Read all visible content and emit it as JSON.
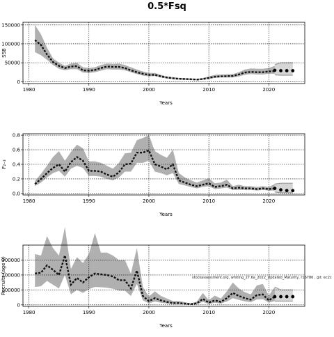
{
  "figure": {
    "title": "0.5*Fsq",
    "watermark": "stockassessment.org, whiting_27.6a_2022_Updated_Maturity, r16786 , git: ec2c"
  },
  "chart_data": [
    {
      "type": "area",
      "panel": "ssb",
      "xlabel": "Years",
      "ylabel": "SSB",
      "xlim": [
        1979,
        2026
      ],
      "ylim": [
        -5000,
        157000
      ],
      "xticks": [
        1980,
        1990,
        2000,
        2010,
        2020
      ],
      "yticks": [
        0,
        50000,
        100000,
        150000
      ],
      "ytick_labels": [
        "0",
        "50000",
        "100000",
        "150000"
      ],
      "grid": true,
      "band_color": "#b0b0b0",
      "line_color": "#111111",
      "x": [
        1981,
        1982,
        1983,
        1984,
        1985,
        1986,
        1987,
        1988,
        1989,
        1990,
        1991,
        1992,
        1993,
        1994,
        1995,
        1996,
        1997,
        1998,
        1999,
        2000,
        2001,
        2002,
        2003,
        2004,
        2005,
        2006,
        2007,
        2008,
        2009,
        2010,
        2011,
        2012,
        2013,
        2014,
        2015,
        2016,
        2017,
        2018,
        2019,
        2020,
        2021
      ],
      "estimate": [
        110000,
        97000,
        72000,
        52000,
        42000,
        36000,
        40000,
        41000,
        30000,
        29000,
        31000,
        36000,
        40000,
        39000,
        39000,
        36000,
        30000,
        25000,
        21000,
        18000,
        18000,
        14000,
        11000,
        9000,
        7500,
        7000,
        6500,
        5500,
        7000,
        10000,
        13000,
        14000,
        14500,
        15000,
        19000,
        24000,
        26000,
        25000,
        25000,
        27000,
        28000
      ],
      "lower": [
        78000,
        70000,
        58000,
        44000,
        34000,
        30000,
        33000,
        33000,
        24000,
        23000,
        25000,
        29000,
        33000,
        32000,
        32000,
        30000,
        25000,
        20000,
        16000,
        14000,
        15000,
        11000,
        8500,
        7000,
        5500,
        5000,
        4500,
        4000,
        5000,
        7500,
        10000,
        11000,
        11000,
        11000,
        14000,
        18000,
        20000,
        19000,
        19000,
        21000,
        21000
      ],
      "upper": [
        150000,
        125000,
        90000,
        62000,
        50000,
        42000,
        48000,
        50000,
        38000,
        36000,
        38000,
        44000,
        48000,
        47000,
        48000,
        44000,
        38000,
        32000,
        27000,
        23000,
        23000,
        18000,
        14000,
        12000,
        10000,
        9500,
        8500,
        7500,
        9500,
        14000,
        18000,
        19000,
        19500,
        20000,
        25000,
        32000,
        35000,
        34000,
        34000,
        36000,
        42000
      ],
      "forecast_x": [
        2021,
        2022,
        2023,
        2024
      ],
      "forecast_points": [
        30000,
        29000,
        29000,
        29000
      ],
      "forecast_lower": [
        18000,
        17000,
        17000,
        17000
      ],
      "forecast_upper": [
        45000,
        50000,
        50000,
        50000
      ]
    },
    {
      "type": "area",
      "panel": "fbar",
      "xlabel": "Years",
      "ylabel": "F₂₋₃",
      "xlim": [
        1979,
        2026
      ],
      "ylim": [
        -0.02,
        0.82
      ],
      "xticks": [
        1980,
        1990,
        2000,
        2010,
        2020
      ],
      "yticks": [
        0,
        0.2,
        0.4,
        0.6,
        0.8
      ],
      "ytick_labels": [
        "0.0",
        "0.2",
        "0.4",
        "0.6",
        "0.8"
      ],
      "grid": true,
      "band_color": "#b0b0b0",
      "line_color": "#111111",
      "x": [
        1981,
        1982,
        1983,
        1984,
        1985,
        1986,
        1987,
        1988,
        1989,
        1990,
        1991,
        1992,
        1993,
        1994,
        1995,
        1996,
        1997,
        1998,
        1999,
        2000,
        2001,
        2002,
        2003,
        2004,
        2005,
        2006,
        2007,
        2008,
        2009,
        2010,
        2011,
        2012,
        2013,
        2014,
        2015,
        2016,
        2017,
        2018,
        2019,
        2020,
        2021
      ],
      "estimate": [
        0.13,
        0.2,
        0.28,
        0.35,
        0.4,
        0.3,
        0.43,
        0.5,
        0.45,
        0.31,
        0.31,
        0.3,
        0.26,
        0.23,
        0.29,
        0.4,
        0.41,
        0.56,
        0.56,
        0.59,
        0.4,
        0.37,
        0.33,
        0.4,
        0.18,
        0.15,
        0.12,
        0.1,
        0.12,
        0.14,
        0.09,
        0.1,
        0.12,
        0.07,
        0.08,
        0.07,
        0.07,
        0.06,
        0.07,
        0.06,
        0.07
      ],
      "lower": [
        0.1,
        0.15,
        0.22,
        0.28,
        0.31,
        0.23,
        0.34,
        0.38,
        0.35,
        0.24,
        0.24,
        0.23,
        0.2,
        0.18,
        0.22,
        0.3,
        0.3,
        0.42,
        0.42,
        0.45,
        0.3,
        0.28,
        0.25,
        0.28,
        0.13,
        0.11,
        0.09,
        0.07,
        0.09,
        0.1,
        0.06,
        0.07,
        0.08,
        0.05,
        0.05,
        0.05,
        0.05,
        0.04,
        0.05,
        0.04,
        0.04
      ],
      "upper": [
        0.17,
        0.27,
        0.38,
        0.5,
        0.58,
        0.45,
        0.57,
        0.67,
        0.62,
        0.44,
        0.44,
        0.42,
        0.38,
        0.34,
        0.42,
        0.55,
        0.56,
        0.73,
        0.76,
        0.8,
        0.58,
        0.53,
        0.49,
        0.6,
        0.28,
        0.22,
        0.18,
        0.15,
        0.18,
        0.21,
        0.14,
        0.15,
        0.19,
        0.1,
        0.12,
        0.1,
        0.1,
        0.09,
        0.1,
        0.09,
        0.13
      ],
      "forecast_x": [
        2021,
        2022,
        2023,
        2024
      ],
      "forecast_points": [
        0.07,
        0.05,
        0.04,
        0.04
      ],
      "forecast_lower": [
        0.02,
        0.01,
        0.01,
        0.01
      ],
      "forecast_upper": [
        0.13,
        0.14,
        0.14,
        0.14
      ]
    },
    {
      "type": "area",
      "panel": "recruitment",
      "xlabel": "Years",
      "ylabel": "Recruits (age 0)",
      "xlim": [
        1979,
        2026
      ],
      "ylim": [
        -10000000,
        400000000
      ],
      "xticks": [
        1980,
        1990,
        2000,
        2010,
        2020
      ],
      "yticks": [
        0,
        100000000,
        200000000,
        300000000
      ],
      "ytick_labels": [
        "0",
        "100000",
        "200000",
        "300000"
      ],
      "grid": true,
      "band_color": "#b0b0b0",
      "line_color": "#111111",
      "x": [
        1981,
        1982,
        1983,
        1984,
        1985,
        1986,
        1987,
        1988,
        1989,
        1990,
        1991,
        1992,
        1993,
        1994,
        1995,
        1996,
        1997,
        1998,
        1999,
        2000,
        2001,
        2002,
        2003,
        2004,
        2005,
        2006,
        2007,
        2008,
        2009,
        2010,
        2011,
        2012,
        2013,
        2014,
        2015,
        2016,
        2017,
        2018,
        2019,
        2020,
        2021
      ],
      "estimate": [
        210000000,
        215000000,
        265000000,
        235000000,
        200000000,
        330000000,
        135000000,
        180000000,
        150000000,
        185000000,
        210000000,
        205000000,
        200000000,
        190000000,
        165000000,
        165000000,
        110000000,
        230000000,
        60000000,
        25000000,
        45000000,
        30000000,
        20000000,
        12000000,
        12000000,
        8000000,
        5000000,
        10000000,
        40000000,
        15000000,
        30000000,
        20000000,
        45000000,
        80000000,
        60000000,
        45000000,
        35000000,
        65000000,
        70000000,
        30000000,
        55000000
      ],
      "lower": [
        120000000,
        125000000,
        160000000,
        135000000,
        110000000,
        200000000,
        70000000,
        100000000,
        80000000,
        105000000,
        120000000,
        118000000,
        115000000,
        108000000,
        95000000,
        95000000,
        60000000,
        140000000,
        30000000,
        10000000,
        22000000,
        14000000,
        9000000,
        5000000,
        5000000,
        3000000,
        2000000,
        4000000,
        20000000,
        6000000,
        14000000,
        9000000,
        22000000,
        45000000,
        33000000,
        24000000,
        18000000,
        36000000,
        38000000,
        15000000,
        25000000
      ],
      "upper": [
        340000000,
        330000000,
        460000000,
        380000000,
        330000000,
        520000000,
        240000000,
        320000000,
        280000000,
        340000000,
        480000000,
        350000000,
        350000000,
        330000000,
        300000000,
        300000000,
        210000000,
        380000000,
        120000000,
        55000000,
        90000000,
        60000000,
        42000000,
        26000000,
        26000000,
        18000000,
        11000000,
        22000000,
        80000000,
        32000000,
        62000000,
        42000000,
        90000000,
        150000000,
        110000000,
        85000000,
        70000000,
        130000000,
        140000000,
        62000000,
        120000000
      ],
      "forecast_x": [
        2021,
        2022,
        2023,
        2024
      ],
      "forecast_points": [
        55000000,
        55000000,
        55000000,
        55000000
      ],
      "forecast_lower": [
        25000000,
        25000000,
        25000000,
        25000000
      ],
      "forecast_upper": [
        120000000,
        100000000,
        100000000,
        100000000
      ]
    }
  ]
}
